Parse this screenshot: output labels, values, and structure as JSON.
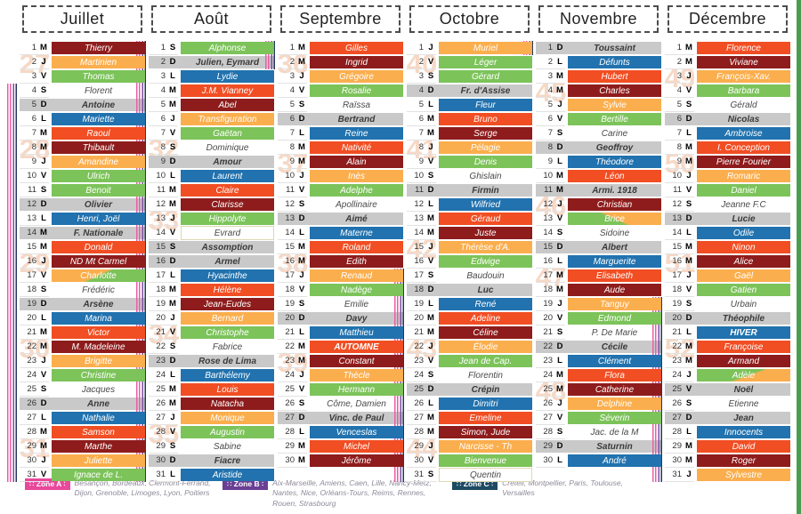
{
  "palette": {
    "darkred": "#8e1c1c",
    "red": "#f14e23",
    "orange": "#fbae4d",
    "green": "#7cc35a",
    "blue": "#2172ae",
    "gray": "#c9c9c9",
    "week_number": "#f6d8c6",
    "edge_bar": "#4a9d4e",
    "stripe_pink": "#e85fa8",
    "stripe_purple": "#7b4f9e",
    "stripe_navy": "#26365e"
  },
  "months": [
    {
      "id": "juillet",
      "name": "Juillet",
      "weeks": [
        [
          27,
          2
        ],
        [
          28,
          8
        ],
        [
          29,
          16
        ],
        [
          30,
          22
        ],
        [
          31,
          29
        ]
      ],
      "vacation": [
        4,
        31
      ],
      "days": [
        [
          1,
          "M",
          "Thierry",
          "dr"
        ],
        [
          2,
          "J",
          "Martinien",
          "o"
        ],
        [
          3,
          "V",
          "Thomas",
          "g"
        ],
        [
          4,
          "S",
          "Florent",
          "w"
        ],
        [
          5,
          "D",
          "Antoine",
          "gy"
        ],
        [
          6,
          "L",
          "Mariette",
          "b"
        ],
        [
          7,
          "M",
          "Raoul",
          "r"
        ],
        [
          8,
          "M",
          "Thibault",
          "dr"
        ],
        [
          9,
          "J",
          "Amandine",
          "o"
        ],
        [
          10,
          "V",
          "Ulrich",
          "g"
        ],
        [
          11,
          "S",
          "Benoit",
          "g"
        ],
        [
          12,
          "D",
          "Olivier",
          "gy"
        ],
        [
          13,
          "L",
          "Henri, Joël",
          "b"
        ],
        [
          14,
          "M",
          "F. Nationale",
          "gy"
        ],
        [
          15,
          "M",
          "Donald",
          "r"
        ],
        [
          16,
          "J",
          "ND Mt Carmel",
          "dr"
        ],
        [
          17,
          "V",
          "Charlotte",
          "og1"
        ],
        [
          18,
          "S",
          "Frédéric",
          "w"
        ],
        [
          19,
          "D",
          "Arsène",
          "gy"
        ],
        [
          20,
          "L",
          "Marina",
          "b"
        ],
        [
          21,
          "M",
          "Victor",
          "r"
        ],
        [
          22,
          "M",
          "M. Madeleine",
          "dr"
        ],
        [
          23,
          "J",
          "Brigitte",
          "o"
        ],
        [
          24,
          "V",
          "Christine",
          "g"
        ],
        [
          25,
          "S",
          "Jacques",
          "w"
        ],
        [
          26,
          "D",
          "Anne",
          "gy"
        ],
        [
          27,
          "L",
          "Nathalie",
          "b"
        ],
        [
          28,
          "M",
          "Samson",
          "r"
        ],
        [
          29,
          "M",
          "Marthe",
          "dr"
        ],
        [
          30,
          "J",
          "Juliette",
          "o"
        ],
        [
          31,
          "V",
          "Ignace de L.",
          "g"
        ]
      ]
    },
    {
      "id": "aout",
      "name": "Août",
      "weeks": [
        [
          32,
          8
        ],
        [
          33,
          13
        ],
        [
          34,
          21
        ],
        [
          35,
          28
        ]
      ],
      "vacation": [
        1,
        31
      ],
      "days": [
        [
          1,
          "S",
          "Alphonse",
          "g"
        ],
        [
          2,
          "D",
          "Julien, Eymard",
          "gy"
        ],
        [
          3,
          "L",
          "Lydie",
          "b"
        ],
        [
          4,
          "M",
          "J.M. Vianney",
          "r"
        ],
        [
          5,
          "M",
          "Abel",
          "dr"
        ],
        [
          6,
          "J",
          "Transfiguration",
          "o"
        ],
        [
          7,
          "V",
          "Gaëtan",
          "g"
        ],
        [
          8,
          "S",
          "Dominique",
          "w"
        ],
        [
          9,
          "D",
          "Amour",
          "gy"
        ],
        [
          10,
          "L",
          "Laurent",
          "b"
        ],
        [
          11,
          "M",
          "Claire",
          "r"
        ],
        [
          12,
          "M",
          "Clarisse",
          "dr"
        ],
        [
          13,
          "J",
          "Hippolyte",
          "g"
        ],
        [
          14,
          "V",
          "Evrard",
          "wb"
        ],
        [
          15,
          "S",
          "Assomption",
          "gy"
        ],
        [
          16,
          "D",
          "Armel",
          "gy"
        ],
        [
          17,
          "L",
          "Hyacinthe",
          "b"
        ],
        [
          18,
          "M",
          "Hélène",
          "r"
        ],
        [
          19,
          "M",
          "Jean-Eudes",
          "dr"
        ],
        [
          20,
          "J",
          "Bernard",
          "o"
        ],
        [
          21,
          "V",
          "Christophe",
          "g"
        ],
        [
          22,
          "S",
          "Fabrice",
          "w"
        ],
        [
          23,
          "D",
          "Rose de Lima",
          "gy"
        ],
        [
          24,
          "L",
          "Barthélemy",
          "b"
        ],
        [
          25,
          "M",
          "Louis",
          "r"
        ],
        [
          26,
          "M",
          "Natacha",
          "dr"
        ],
        [
          27,
          "J",
          "Monique",
          "o"
        ],
        [
          28,
          "V",
          "Augustin",
          "g"
        ],
        [
          29,
          "S",
          "Sabine",
          "w"
        ],
        [
          30,
          "D",
          "Fiacre",
          "gy"
        ],
        [
          31,
          "L",
          "Aristide",
          "b"
        ]
      ]
    },
    {
      "id": "septembre",
      "name": "Septembre",
      "weeks": [
        [
          36,
          2
        ],
        [
          37,
          9
        ],
        [
          38,
          16
        ],
        [
          39,
          23
        ]
      ],
      "vacation": [
        1,
        2
      ],
      "days": [
        [
          1,
          "M",
          "Gilles",
          "r"
        ],
        [
          2,
          "M",
          "Ingrid",
          "dr"
        ],
        [
          3,
          "J",
          "Grégoire",
          "o"
        ],
        [
          4,
          "V",
          "Rosalie",
          "g"
        ],
        [
          5,
          "S",
          "Raïssa",
          "w"
        ],
        [
          6,
          "D",
          "Bertrand",
          "gy"
        ],
        [
          7,
          "L",
          "Reine",
          "b"
        ],
        [
          8,
          "M",
          "Nativité",
          "r"
        ],
        [
          9,
          "M",
          "Alain",
          "dr"
        ],
        [
          10,
          "J",
          "Inès",
          "o"
        ],
        [
          11,
          "V",
          "Adelphe",
          "g"
        ],
        [
          12,
          "S",
          "Apollinaire",
          "w"
        ],
        [
          13,
          "D",
          "Aimé",
          "gy"
        ],
        [
          14,
          "L",
          "Materne",
          "b"
        ],
        [
          15,
          "M",
          "Roland",
          "r"
        ],
        [
          16,
          "M",
          "Edith",
          "dr"
        ],
        [
          17,
          "J",
          "Renaud",
          "o"
        ],
        [
          18,
          "V",
          "Nadège",
          "g"
        ],
        [
          19,
          "S",
          "Emilie",
          "w"
        ],
        [
          20,
          "D",
          "Davy",
          "gy"
        ],
        [
          21,
          "L",
          "Matthieu",
          "b"
        ],
        [
          22,
          "M",
          "AUTOMNE",
          "r",
          1
        ],
        [
          23,
          "M",
          "Constant",
          "dr"
        ],
        [
          24,
          "J",
          "Thècle",
          "o"
        ],
        [
          25,
          "V",
          "Hermann",
          "g"
        ],
        [
          26,
          "S",
          "Côme, Damien",
          "w"
        ],
        [
          27,
          "D",
          "Vinc. de Paul",
          "gy"
        ],
        [
          28,
          "L",
          "Venceslas",
          "b"
        ],
        [
          29,
          "M",
          "Michel",
          "r"
        ],
        [
          30,
          "M",
          "Jérôme",
          "dr"
        ]
      ]
    },
    {
      "id": "octobre",
      "name": "Octobre",
      "weeks": [
        [
          40,
          2
        ],
        [
          41,
          8
        ],
        [
          42,
          15
        ],
        [
          43,
          22
        ],
        [
          44,
          29
        ]
      ],
      "vacation": [
        17,
        31
      ],
      "days": [
        [
          1,
          "J",
          "Muriel",
          "o"
        ],
        [
          2,
          "V",
          "Léger",
          "g"
        ],
        [
          3,
          "S",
          "Gérard",
          "g"
        ],
        [
          4,
          "D",
          "Fr. d'Assise",
          "gy"
        ],
        [
          5,
          "L",
          "Fleur",
          "b"
        ],
        [
          6,
          "M",
          "Bruno",
          "r"
        ],
        [
          7,
          "M",
          "Serge",
          "dr"
        ],
        [
          8,
          "J",
          "Pélagie",
          "o"
        ],
        [
          9,
          "V",
          "Denis",
          "g"
        ],
        [
          10,
          "S",
          "Ghislain",
          "w"
        ],
        [
          11,
          "D",
          "Firmin",
          "gy"
        ],
        [
          12,
          "L",
          "Wilfried",
          "b"
        ],
        [
          13,
          "M",
          "Géraud",
          "r"
        ],
        [
          14,
          "M",
          "Juste",
          "dr"
        ],
        [
          15,
          "J",
          "Thérèse d'A.",
          "o"
        ],
        [
          16,
          "V",
          "Edwige",
          "g"
        ],
        [
          17,
          "S",
          "Baudouin",
          "w"
        ],
        [
          18,
          "D",
          "Luc",
          "gy"
        ],
        [
          19,
          "L",
          "René",
          "b"
        ],
        [
          20,
          "M",
          "Adeline",
          "r"
        ],
        [
          21,
          "M",
          "Céline",
          "dr"
        ],
        [
          22,
          "J",
          "Élodie",
          "o"
        ],
        [
          23,
          "V",
          "Jean de Cap.",
          "g"
        ],
        [
          24,
          "S",
          "Florentin",
          "w"
        ],
        [
          25,
          "D",
          "Crépin",
          "gy"
        ],
        [
          26,
          "L",
          "Dimitri",
          "b"
        ],
        [
          27,
          "M",
          "Emeline",
          "r"
        ],
        [
          28,
          "M",
          "Simon, Jude",
          "dr"
        ],
        [
          29,
          "J",
          "Narcisse - Th",
          "o"
        ],
        [
          30,
          "V",
          "Bienvenue",
          "g"
        ],
        [
          31,
          "S",
          "Quentin",
          "wb"
        ]
      ]
    },
    {
      "id": "novembre",
      "name": "Novembre",
      "weeks": [
        [
          45,
          4
        ],
        [
          46,
          12
        ],
        [
          47,
          17
        ],
        [
          48,
          25
        ]
      ],
      "vacation": [
        1,
        1
      ],
      "days": [
        [
          1,
          "D",
          "Toussaint",
          "gy"
        ],
        [
          2,
          "L",
          "Défunts",
          "b"
        ],
        [
          3,
          "M",
          "Hubert",
          "r"
        ],
        [
          4,
          "M",
          "Charles",
          "dr"
        ],
        [
          5,
          "J",
          "Sylvie",
          "o"
        ],
        [
          6,
          "V",
          "Bertille",
          "g"
        ],
        [
          7,
          "S",
          "Carine",
          "w"
        ],
        [
          8,
          "D",
          "Geoffroy",
          "gy"
        ],
        [
          9,
          "L",
          "Théodore",
          "b"
        ],
        [
          10,
          "M",
          "Léon",
          "r"
        ],
        [
          11,
          "M",
          "Armi. 1918",
          "gy"
        ],
        [
          12,
          "J",
          "Christian",
          "dr"
        ],
        [
          13,
          "V",
          "Brice",
          "og2"
        ],
        [
          14,
          "S",
          "Sidoine",
          "w"
        ],
        [
          15,
          "D",
          "Albert",
          "gy"
        ],
        [
          16,
          "L",
          "Marguerite",
          "b"
        ],
        [
          17,
          "M",
          "Elisabeth",
          "r"
        ],
        [
          18,
          "M",
          "Aude",
          "dr"
        ],
        [
          19,
          "J",
          "Tanguy",
          "o"
        ],
        [
          20,
          "V",
          "Edmond",
          "g"
        ],
        [
          21,
          "S",
          "P. De Marie",
          "w"
        ],
        [
          22,
          "D",
          "Cécile",
          "gy"
        ],
        [
          23,
          "L",
          "Clément",
          "b"
        ],
        [
          24,
          "M",
          "Flora",
          "r"
        ],
        [
          25,
          "M",
          "Catherine",
          "dr"
        ],
        [
          26,
          "J",
          "Delphine",
          "o"
        ],
        [
          27,
          "V",
          "Séverin",
          "g"
        ],
        [
          28,
          "S",
          "Jac. de la M",
          "w"
        ],
        [
          29,
          "D",
          "Saturnin",
          "gy"
        ],
        [
          30,
          "L",
          "André",
          "b"
        ]
      ]
    },
    {
      "id": "decembre",
      "name": "Décembre",
      "weeks": [
        [
          49,
          3
        ],
        [
          50,
          9
        ],
        [
          51,
          16
        ],
        [
          52,
          22
        ]
      ],
      "vacation": [
        19,
        31
      ],
      "days": [
        [
          1,
          "M",
          "Florence",
          "r"
        ],
        [
          2,
          "M",
          "Viviane",
          "dr"
        ],
        [
          3,
          "J",
          "François-Xav.",
          "o"
        ],
        [
          4,
          "V",
          "Barbara",
          "g"
        ],
        [
          5,
          "S",
          "Gérald",
          "w"
        ],
        [
          6,
          "D",
          "Nicolas",
          "gy"
        ],
        [
          7,
          "L",
          "Ambroise",
          "b"
        ],
        [
          8,
          "M",
          "I. Conception",
          "r"
        ],
        [
          9,
          "M",
          "Pierre Fourier",
          "dr"
        ],
        [
          10,
          "J",
          "Romaric",
          "o"
        ],
        [
          11,
          "V",
          "Daniel",
          "g"
        ],
        [
          12,
          "S",
          "Jeanne F.C",
          "w"
        ],
        [
          13,
          "D",
          "Lucie",
          "gy"
        ],
        [
          14,
          "L",
          "Odile",
          "b"
        ],
        [
          15,
          "M",
          "Ninon",
          "r"
        ],
        [
          16,
          "M",
          "Alice",
          "dr"
        ],
        [
          17,
          "J",
          "Gaël",
          "o"
        ],
        [
          18,
          "V",
          "Gatien",
          "g"
        ],
        [
          19,
          "S",
          "Urbain",
          "w"
        ],
        [
          20,
          "D",
          "Théophile",
          "gy"
        ],
        [
          21,
          "L",
          "HIVER",
          "b",
          1
        ],
        [
          22,
          "M",
          "Françoise",
          "r"
        ],
        [
          23,
          "M",
          "Armand",
          "dr"
        ],
        [
          24,
          "J",
          "Adèle",
          "go"
        ],
        [
          25,
          "V",
          "Noël",
          "gy"
        ],
        [
          26,
          "S",
          "Etienne",
          "w"
        ],
        [
          27,
          "D",
          "Jean",
          "gy"
        ],
        [
          28,
          "L",
          "Innocents",
          "b"
        ],
        [
          29,
          "M",
          "David",
          "r"
        ],
        [
          30,
          "M",
          "Roger",
          "dr"
        ],
        [
          31,
          "J",
          "Sylvestre",
          "o"
        ]
      ]
    }
  ],
  "legend": {
    "zones": [
      {
        "label": "Zone A",
        "color": "#e8489b",
        "cities": "Besançon, Bordeaux, Clermont-Ferrand, Dijon, Grenoble, Limoges, Lyon, Poitiers"
      },
      {
        "label": "Zone B",
        "color": "#6b3f94",
        "cities": "Aix-Marseille, Amiens, Caen, Lille, Nancy-Metz, Nantes, Nice, Orléans-Tours, Reims, Rennes, Rouen, Strasbourg"
      },
      {
        "label": "Zone C",
        "color": "#1d4a63",
        "cities": "Créteil, Montpellier, Paris, Toulouse, Versailles"
      }
    ]
  }
}
